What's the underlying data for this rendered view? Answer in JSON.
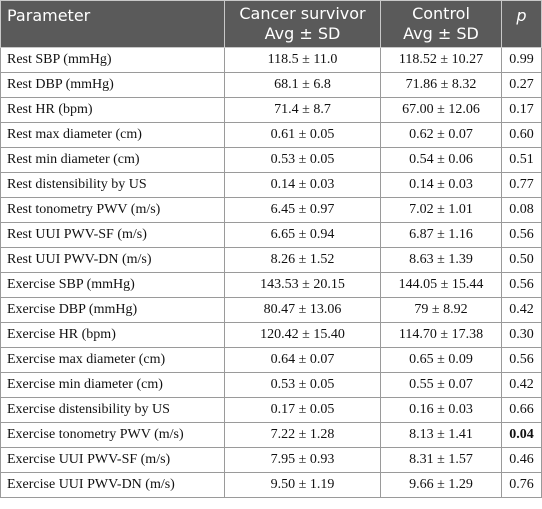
{
  "header": {
    "parameter": "Parameter",
    "cancer_line1": "Cancer survivor",
    "cancer_line2": "Avg ± SD",
    "control_line1": "Control",
    "control_line2": "Avg ± SD",
    "p": "p"
  },
  "rows": [
    {
      "parameter": "Rest SBP (mmHg)",
      "cancer": "118.5 ± 11.0",
      "control": "118.52 ± 10.27",
      "p": "0.99"
    },
    {
      "parameter": "Rest DBP (mmHg)",
      "cancer": "68.1 ± 6.8",
      "control": "71.86 ± 8.32",
      "p": "0.27"
    },
    {
      "parameter": "Rest HR (bpm)",
      "cancer": "71.4 ± 8.7",
      "control": "67.00 ± 12.06",
      "p": "0.17"
    },
    {
      "parameter": "Rest max diameter (cm)",
      "cancer": "0.61 ± 0.05",
      "control": "0.62 ± 0.07",
      "p": "0.60"
    },
    {
      "parameter": "Rest min diameter (cm)",
      "cancer": "0.53 ± 0.05",
      "control": "0.54 ± 0.06",
      "p": "0.51"
    },
    {
      "parameter": "Rest distensibility by US",
      "cancer": "0.14 ± 0.03",
      "control": "0.14 ± 0.03",
      "p": "0.77"
    },
    {
      "parameter": "Rest tonometry PWV (m/s)",
      "cancer": "6.45 ± 0.97",
      "control": "7.02 ± 1.01",
      "p": "0.08"
    },
    {
      "parameter": "Rest UUI PWV-SF (m/s)",
      "cancer": "6.65 ± 0.94",
      "control": "6.87 ± 1.16",
      "p": "0.56"
    },
    {
      "parameter": "Rest UUI PWV-DN (m/s)",
      "cancer": "8.26 ± 1.52",
      "control": "8.63 ± 1.39",
      "p": "0.50"
    },
    {
      "parameter": "Exercise SBP (mmHg)",
      "cancer": "143.53 ± 20.15",
      "control": "144.05 ± 15.44",
      "p": "0.56"
    },
    {
      "parameter": "Exercise DBP (mmHg)",
      "cancer": "80.47 ± 13.06",
      "control": "79 ± 8.92",
      "p": "0.42"
    },
    {
      "parameter": "Exercise HR (bpm)",
      "cancer": "120.42 ± 15.40",
      "control": "114.70 ± 17.38",
      "p": "0.30"
    },
    {
      "parameter": "Exercise max diameter (cm)",
      "cancer": "0.64 ± 0.07",
      "control": "0.65 ± 0.09",
      "p": "0.56"
    },
    {
      "parameter": "Exercise min diameter (cm)",
      "cancer": "0.53 ± 0.05",
      "control": "0.55 ± 0.07",
      "p": "0.42"
    },
    {
      "parameter": "Exercise distensibility by US",
      "cancer": "0.17 ± 0.05",
      "control": "0.16 ± 0.03",
      "p": "0.66"
    },
    {
      "parameter": "Exercise tonometry PWV (m/s)",
      "cancer": "7.22 ± 1.28",
      "control": "8.13 ± 1.41",
      "p": "0.04",
      "p_bold": true
    },
    {
      "parameter": "Exercise UUI PWV-SF (m/s)",
      "cancer": "7.95 ± 0.93",
      "control": "8.31 ± 1.57",
      "p": "0.46"
    },
    {
      "parameter": "Exercise UUI PWV-DN (m/s)",
      "cancer": "9.50 ± 1.19",
      "control": "9.66 ± 1.29",
      "p": "0.76"
    }
  ]
}
